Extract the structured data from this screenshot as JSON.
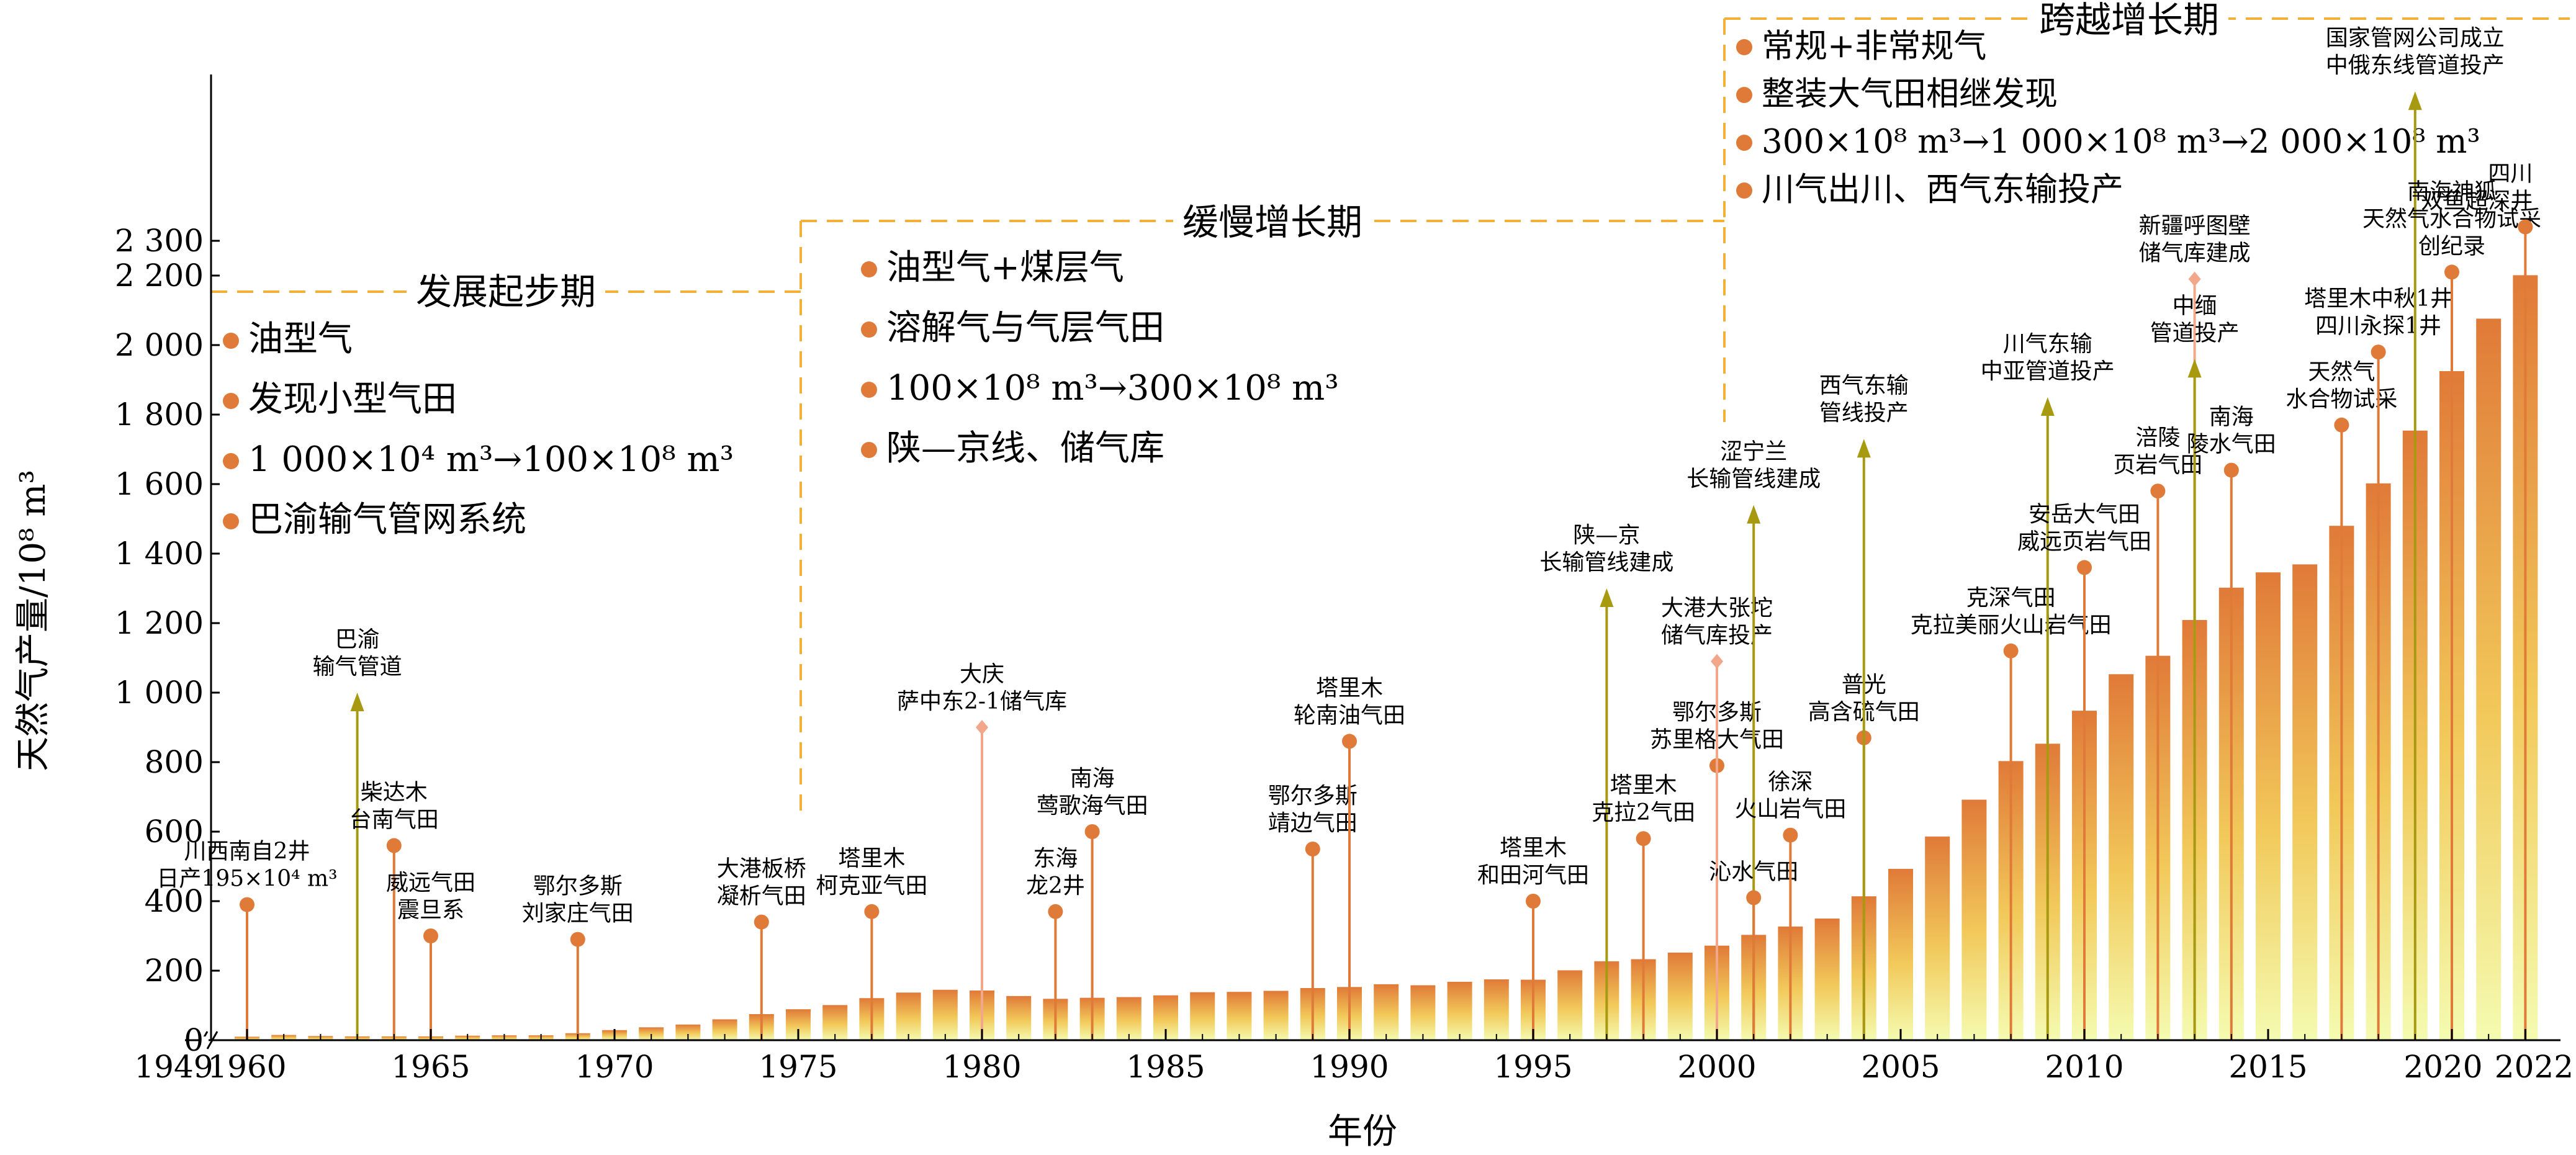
{
  "chart_data": {
    "type": "bar",
    "ylabel": "天然气产量/10⁸ m³",
    "xlabel": "年份",
    "ylim": [
      0,
      2300
    ],
    "grid": false,
    "y_ticks": [
      {
        "v": 0,
        "label": "0"
      },
      {
        "v": 200,
        "label": "200"
      },
      {
        "v": 400,
        "label": "400"
      },
      {
        "v": 600,
        "label": "600"
      },
      {
        "v": 800,
        "label": "800"
      },
      {
        "v": 1000,
        "label": "1 000"
      },
      {
        "v": 1200,
        "label": "1 200"
      },
      {
        "v": 1400,
        "label": "1 400"
      },
      {
        "v": 1600,
        "label": "1 600"
      },
      {
        "v": 1800,
        "label": "1 800"
      },
      {
        "v": 2000,
        "label": "2 000"
      },
      {
        "v": 2200,
        "label": "2 200"
      },
      {
        "v": 2300,
        "label": "2 300"
      }
    ],
    "x_ticks": [
      {
        "year": 1960,
        "label": "1960"
      },
      {
        "year": 1965,
        "label": "1965"
      },
      {
        "year": 1970,
        "label": "1970"
      },
      {
        "year": 1975,
        "label": "1975"
      },
      {
        "year": 1980,
        "label": "1980"
      },
      {
        "year": 1985,
        "label": "1985"
      },
      {
        "year": 1990,
        "label": "1990"
      },
      {
        "year": 1995,
        "label": "1995"
      },
      {
        "year": 2000,
        "label": "2000"
      },
      {
        "year": 2005,
        "label": "2005"
      },
      {
        "year": 2010,
        "label": "2010"
      },
      {
        "year": 2015,
        "label": "2015"
      },
      {
        "year": 2020,
        "label": "2020"
      },
      {
        "year": 2022,
        "label": "2022"
      }
    ],
    "x_start_label": "1949",
    "x": [
      1960,
      1961,
      1962,
      1963,
      1964,
      1965,
      1966,
      1967,
      1968,
      1969,
      1970,
      1971,
      1972,
      1973,
      1974,
      1975,
      1976,
      1977,
      1978,
      1979,
      1980,
      1981,
      1982,
      1983,
      1984,
      1985,
      1986,
      1987,
      1988,
      1989,
      1990,
      1991,
      1992,
      1993,
      1994,
      1995,
      1996,
      1997,
      1998,
      1999,
      2000,
      2001,
      2002,
      2003,
      2004,
      2005,
      2006,
      2007,
      2008,
      2009,
      2010,
      2011,
      2012,
      2013,
      2014,
      2015,
      2016,
      2017,
      2018,
      2019,
      2020,
      2021,
      2022
    ],
    "values": [
      10,
      15,
      12,
      11,
      11,
      11,
      13,
      14,
      14,
      20,
      29,
      37,
      45,
      60,
      75,
      89,
      101,
      121,
      137,
      145,
      143,
      127,
      119,
      122,
      124,
      129,
      138,
      139,
      142,
      150,
      153,
      161,
      158,
      168,
      175,
      174,
      201,
      227,
      233,
      252,
      272,
      303,
      327,
      350,
      414,
      493,
      586,
      692,
      803,
      853,
      948,
      1053,
      1106,
      1209,
      1302,
      1346,
      1369,
      1480,
      1602,
      1754,
      1925,
      2076,
      2201
    ],
    "phases": [
      {
        "name": "发展起步期",
        "bullets": [
          "油型气",
          "发现小型气田",
          "1 000×10⁴ m³→100×10⁸ m³",
          "巴渝输气管网系统"
        ]
      },
      {
        "name": "缓慢增长期",
        "bullets": [
          "油型气+煤层气",
          "溶解气与气层气田",
          "100×10⁸ m³→300×10⁸ m³",
          "陕—京线、储气库"
        ]
      },
      {
        "name": "跨越增长期",
        "bullets": [
          "常规+非常规气",
          "整装大气田相继发现",
          "300×10⁸ m³→1 000×10⁸ m³→2 000×10⁸ m³",
          "川气出川、西气东输投产"
        ]
      }
    ],
    "annotations": [
      {
        "year": 1960,
        "y": 390,
        "kind": "dot",
        "lines": [
          "川西南自2井",
          "日产195×10⁴ m³"
        ]
      },
      {
        "year": 1963,
        "y": 1000,
        "kind": "arrow",
        "lines": [
          "巴渝",
          "输气管道"
        ]
      },
      {
        "year": 1964,
        "y": 560,
        "kind": "dot",
        "lines": [
          "柴达木",
          "台南气田"
        ]
      },
      {
        "year": 1965,
        "y": 300,
        "kind": "dot",
        "lines": [
          "威远气田",
          "震旦系"
        ]
      },
      {
        "year": 1969,
        "y": 290,
        "kind": "dot",
        "lines": [
          "鄂尔多斯",
          "刘家庄气田"
        ]
      },
      {
        "year": 1974,
        "y": 340,
        "kind": "dot",
        "lines": [
          "大港板桥",
          "凝析气田"
        ]
      },
      {
        "year": 1977,
        "y": 370,
        "kind": "dot",
        "lines": [
          "塔里木",
          "柯克亚气田"
        ]
      },
      {
        "year": 1980,
        "y": 900,
        "kind": "diamond",
        "lines": [
          "大庆",
          "萨中东2-1储气库"
        ]
      },
      {
        "year": 1982,
        "y": 370,
        "kind": "dot",
        "lines": [
          "东海",
          "龙2井"
        ]
      },
      {
        "year": 1983,
        "y": 600,
        "kind": "dot",
        "lines": [
          "南海",
          "莺歌海气田"
        ]
      },
      {
        "year": 1989,
        "y": 550,
        "kind": "dot",
        "lines": [
          "鄂尔多斯",
          "靖边气田"
        ]
      },
      {
        "year": 1990,
        "y": 860,
        "kind": "dot",
        "lines": [
          "塔里木",
          "轮南油气田"
        ]
      },
      {
        "year": 1995,
        "y": 400,
        "kind": "dot",
        "lines": [
          "塔里木",
          "和田河气田"
        ]
      },
      {
        "year": 1997,
        "y": 1300,
        "kind": "arrow",
        "lines": [
          "陕—京",
          "长输管线建成"
        ]
      },
      {
        "year": 1998,
        "y": 580,
        "kind": "dot",
        "lines": [
          "塔里木",
          "克拉2气田"
        ]
      },
      {
        "year": 2000,
        "y": 790,
        "kind": "dot",
        "lines": [
          "鄂尔多斯",
          "苏里格大气田"
        ]
      },
      {
        "year": 2000,
        "y": 1090,
        "kind": "diamond",
        "lines": [
          "大港大张坨",
          "储气库投产"
        ]
      },
      {
        "year": 2001,
        "y": 1540,
        "kind": "arrow",
        "lines": [
          "涩宁兰",
          "长输管线建成"
        ]
      },
      {
        "year": 2001,
        "y": 410,
        "kind": "dot",
        "lines": [
          "沁水气田"
        ]
      },
      {
        "year": 2002,
        "y": 590,
        "kind": "dot",
        "lines": [
          "徐深",
          "火山岩气田"
        ]
      },
      {
        "year": 2004,
        "y": 870,
        "kind": "dot",
        "lines": [
          "普光",
          "高含硫气田"
        ]
      },
      {
        "year": 2004,
        "y": 1730,
        "kind": "arrow",
        "lines": [
          "西气东输",
          "管线投产"
        ]
      },
      {
        "year": 2008,
        "y": 1120,
        "kind": "dot",
        "lines": [
          "克深气田",
          "克拉美丽火山岩气田"
        ]
      },
      {
        "year": 2009,
        "y": 1850,
        "kind": "arrow",
        "lines": [
          "川气东输",
          "中亚管道投产"
        ]
      },
      {
        "year": 2010,
        "y": 1360,
        "kind": "dot",
        "lines": [
          "安岳大气田",
          "威远页岩气田"
        ]
      },
      {
        "year": 2012,
        "y": 1580,
        "kind": "dot",
        "lines": [
          "涪陵",
          "页岩气田"
        ]
      },
      {
        "year": 2013,
        "y": 2190,
        "kind": "diamond",
        "lines": [
          "新疆呼图壁",
          "储气库建成"
        ]
      },
      {
        "year": 2013,
        "y": 1960,
        "kind": "arrow",
        "lines": [
          "中缅",
          "管道投产"
        ]
      },
      {
        "year": 2014,
        "y": 1640,
        "kind": "dot",
        "lines": [
          "南海",
          "陵水气田"
        ]
      },
      {
        "year": 2017,
        "y": 1770,
        "kind": "dot",
        "lines": [
          "天然气",
          "水合物试采"
        ]
      },
      {
        "year": 2018,
        "y": 1980,
        "kind": "dot",
        "lines": [
          "塔里木中秋1井",
          "四川永探1井"
        ]
      },
      {
        "year": 2019,
        "y": 2730,
        "kind": "arrow",
        "lines": [
          "国家管网公司成立",
          "中俄东线管道投产"
        ]
      },
      {
        "year": 2020,
        "y": 2210,
        "kind": "dot",
        "lines": [
          "南海神狐",
          "天然气水合物试采",
          "创纪录"
        ]
      },
      {
        "year": 2022,
        "y": 2340,
        "kind": "dot",
        "lines": [
          "四川",
          "双鱼超深井"
        ]
      }
    ],
    "colors": {
      "bar_top": "#e07a38",
      "bar_mid": "#f2c95a",
      "bar_bottom": "#f4fbb0",
      "marker": "#e07a38",
      "arrow": "#a89a10",
      "diamond": "#f2a78a",
      "phase_line": "#f0b03a",
      "axis": "#000000"
    }
  }
}
